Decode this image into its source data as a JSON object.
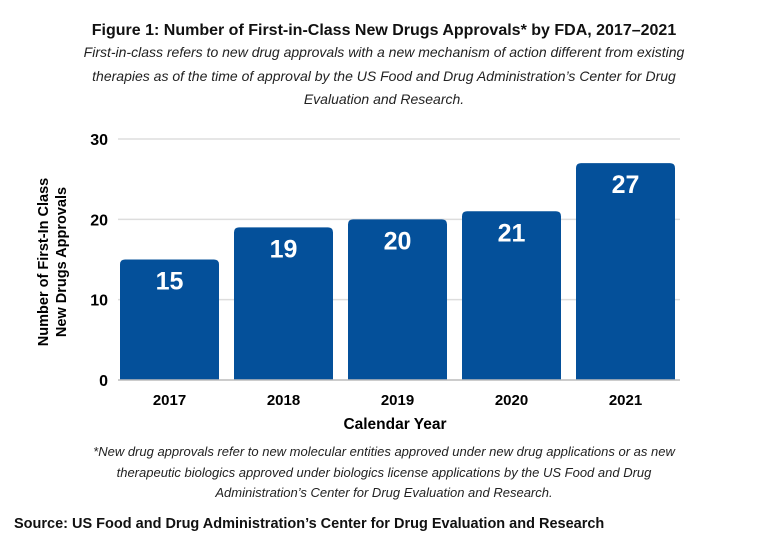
{
  "chart_data": {
    "type": "bar",
    "title": "Figure 1: Number of First-in-Class New Drugs Approvals* by FDA, 2017–2021",
    "subtitle": "First-in-class refers to new drug approvals with a new mechanism of action different from existing therapies as of the time of approval by the US Food and Drug Administration’s Center for Drug Evaluation and Research.",
    "categories": [
      "2017",
      "2018",
      "2019",
      "2020",
      "2021"
    ],
    "values": [
      15,
      19,
      20,
      21,
      27
    ],
    "xlabel": "Calendar Year",
    "ylabel_lines": [
      "Number of First-In Class",
      "New Drugs Approvals"
    ],
    "ylim": [
      0,
      30
    ],
    "yticks": [
      0,
      10,
      20,
      30
    ],
    "grid": true,
    "bar_color": "#04509a",
    "footnote": "*New drug approvals refer to new molecular entities approved under new drug applications or as new therapeutic biologics approved under biologics license applications by the US Food and Drug Administration’s Center for Drug Evaluation and Research.",
    "source": "Source: US Food and Drug Administration’s Center for Drug Evaluation and Research"
  }
}
